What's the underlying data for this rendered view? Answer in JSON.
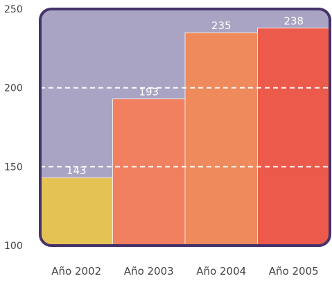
{
  "chart_data": {
    "type": "bar",
    "title": "",
    "xlabel": "",
    "ylabel": "",
    "categories": [
      "Año 2002",
      "Año 2003",
      "Año 2004",
      "Año 2005"
    ],
    "values": [
      143,
      193,
      235,
      238
    ],
    "data_labels": [
      "143",
      "193",
      "235",
      "238"
    ],
    "ylim": [
      100,
      250
    ],
    "y_ticks": [
      100,
      150,
      200,
      250
    ],
    "y_tick_labels": [
      "100",
      "150",
      "200",
      "250"
    ],
    "grid": "dashed horizontal at 150 and 200",
    "legend": "none",
    "colors": {
      "plot_background": "#a9a4c4",
      "frame_border": "#45336a",
      "bars": [
        "#e5c254",
        "#f08060",
        "#ee8a5c",
        "#ec5a4c"
      ],
      "data_label_text": "#ffffff",
      "gridline": "#ffffff",
      "axis_text": "#444444"
    }
  }
}
